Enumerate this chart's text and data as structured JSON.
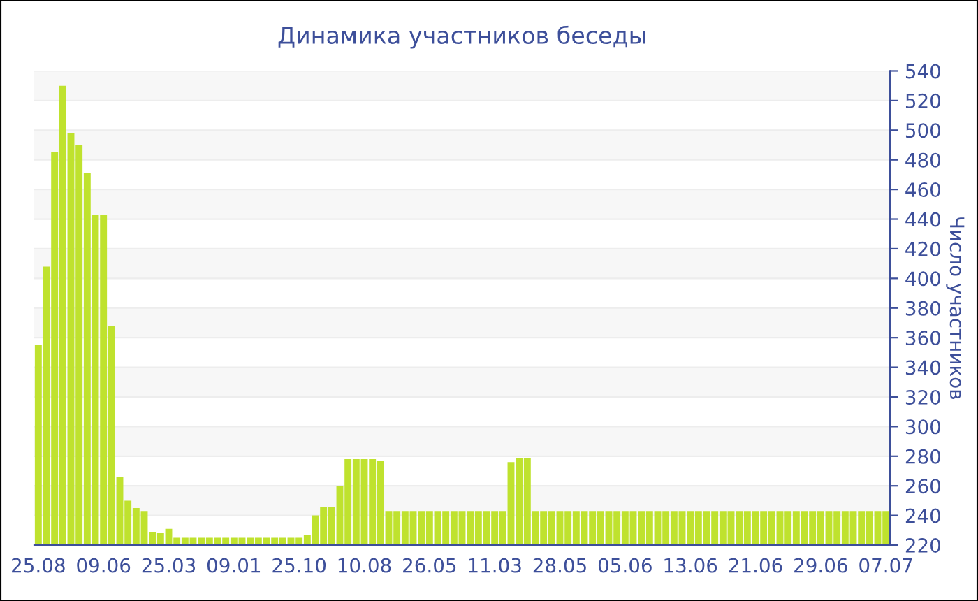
{
  "chart_data": {
    "type": "bar",
    "title": "Динамика участников беседы",
    "ylabel": "Число участников",
    "categories": [
      "25.08",
      null,
      null,
      null,
      null,
      null,
      null,
      null,
      "09.06",
      null,
      null,
      null,
      null,
      null,
      null,
      null,
      "25.03",
      null,
      null,
      null,
      null,
      null,
      null,
      null,
      "09.01",
      null,
      null,
      null,
      null,
      null,
      null,
      null,
      "25.10",
      null,
      null,
      null,
      null,
      null,
      null,
      null,
      "10.08",
      null,
      null,
      null,
      null,
      null,
      null,
      null,
      "26.05",
      null,
      null,
      null,
      null,
      null,
      null,
      null,
      "11.03",
      null,
      null,
      null,
      null,
      null,
      null,
      null,
      "28.05",
      null,
      null,
      null,
      null,
      null,
      null,
      null,
      "05.06",
      null,
      null,
      null,
      null,
      null,
      null,
      null,
      "13.06",
      null,
      null,
      null,
      null,
      null,
      null,
      null,
      "21.06",
      null,
      null,
      null,
      null,
      null,
      null,
      null,
      "29.06",
      null,
      null,
      null,
      null,
      null,
      null,
      null,
      "07.07"
    ],
    "values": [
      355,
      408,
      485,
      530,
      498,
      490,
      471,
      443,
      443,
      368,
      266,
      250,
      245,
      243,
      229,
      228,
      231,
      225,
      225,
      225,
      225,
      225,
      225,
      225,
      225,
      225,
      225,
      225,
      225,
      225,
      225,
      225,
      225,
      227,
      240,
      246,
      246,
      260,
      278,
      278,
      278,
      278,
      277,
      243,
      243,
      243,
      243,
      243,
      243,
      243,
      243,
      243,
      243,
      243,
      243,
      243,
      243,
      243,
      276,
      279,
      279,
      243,
      243,
      243,
      243,
      243,
      243,
      243,
      243,
      243,
      243,
      243,
      243,
      243,
      243,
      243,
      243,
      243,
      243,
      243,
      243,
      243,
      243,
      243,
      243,
      243,
      243,
      243,
      243,
      243,
      243,
      243,
      243,
      243,
      243,
      243,
      243,
      243,
      243,
      243,
      243,
      243,
      243,
      243,
      243
    ],
    "color": "#bfe22e",
    "ylim": [
      220,
      540
    ],
    "yticks": [
      220,
      240,
      260,
      280,
      300,
      320,
      340,
      360,
      380,
      400,
      420,
      440,
      460,
      480,
      500,
      520,
      540
    ],
    "grid": "y"
  }
}
